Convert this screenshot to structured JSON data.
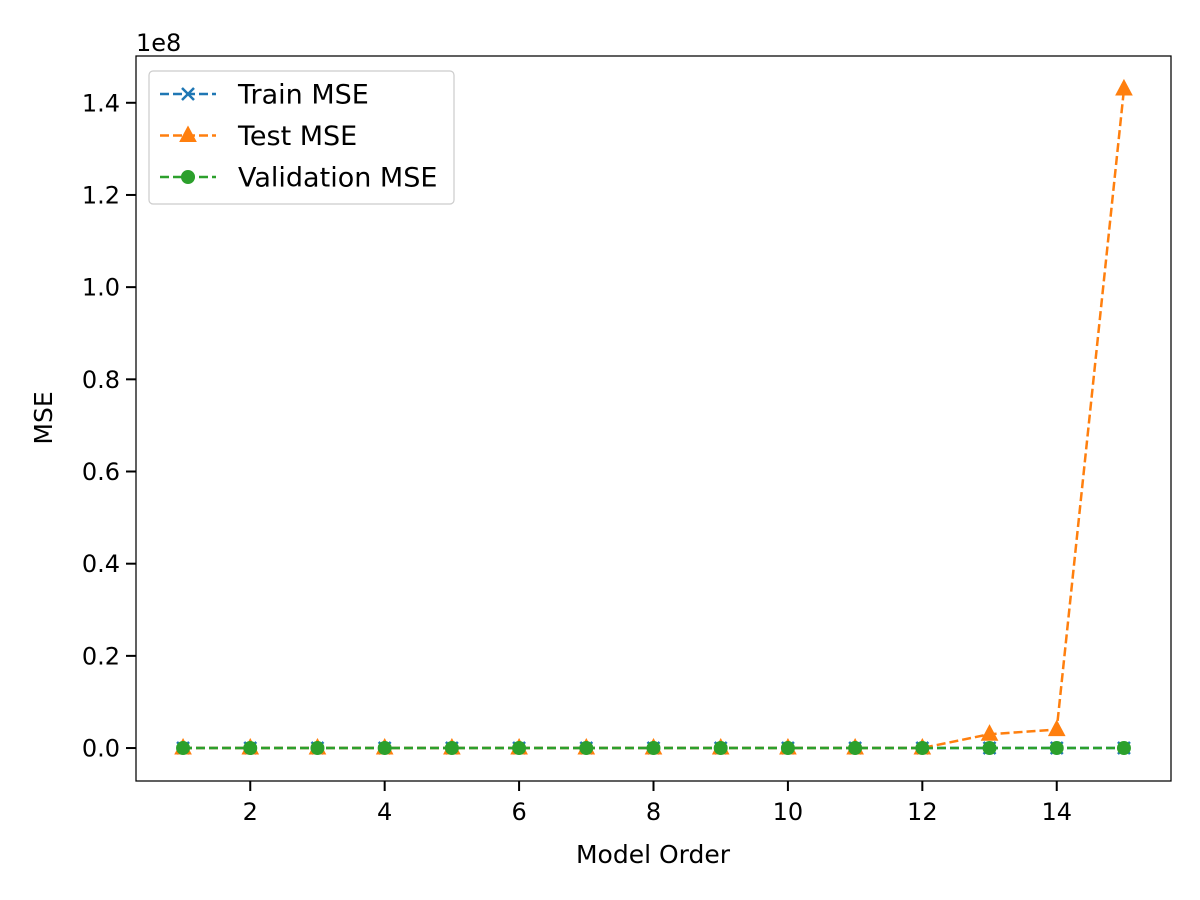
{
  "chart_data": {
    "type": "line",
    "xlabel": "Model Order",
    "ylabel": "MSE",
    "y_offset_label": "1e8",
    "y_scale_factor": 100000000,
    "xlim": [
      0.3,
      15.7
    ],
    "ylim": [
      -7150000,
      150150000
    ],
    "xticks": [
      2,
      4,
      6,
      8,
      10,
      12,
      14
    ],
    "yticks": [
      0.0,
      0.2,
      0.4,
      0.6,
      0.8,
      1.0,
      1.2,
      1.4
    ],
    "ytick_labels": [
      "0.0",
      "0.2",
      "0.4",
      "0.6",
      "0.8",
      "1.0",
      "1.2",
      "1.4"
    ],
    "x": [
      1,
      2,
      3,
      4,
      5,
      6,
      7,
      8,
      9,
      10,
      11,
      12,
      13,
      14,
      15
    ],
    "series": [
      {
        "name": "Train MSE",
        "marker": "x",
        "line_style": "dashed",
        "color": "#1f77b4",
        "values": [
          0,
          0,
          0,
          0,
          0,
          0,
          0,
          0,
          0,
          0,
          0,
          0,
          0,
          0,
          0
        ]
      },
      {
        "name": "Test MSE",
        "marker": "triangle",
        "line_style": "dashed",
        "color": "#ff7f0e",
        "values": [
          0,
          0,
          0,
          0,
          0,
          0,
          0,
          0,
          0,
          0,
          0,
          0,
          3000000,
          4000000,
          143000000
        ]
      },
      {
        "name": "Validation MSE",
        "marker": "circle",
        "line_style": "dashed",
        "color": "#2ca02c",
        "values": [
          0,
          0,
          0,
          0,
          0,
          0,
          0,
          0,
          0,
          0,
          0,
          0,
          0,
          0,
          0
        ]
      }
    ],
    "grid": false,
    "legend_position": "top-left"
  }
}
